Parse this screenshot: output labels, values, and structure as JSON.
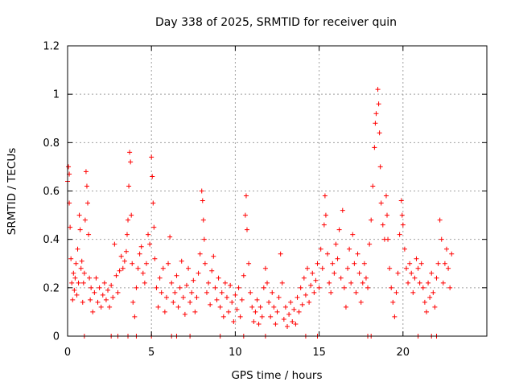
{
  "chart_data": {
    "type": "scatter",
    "title": "Day 338 of 2025, SRMTID for receiver quin",
    "xlabel": "GPS time / hours",
    "ylabel": "SRMTID / TECUs",
    "xlim": [
      0,
      25
    ],
    "ylim": [
      0,
      1.2
    ],
    "x_ticks": [
      0,
      5,
      10,
      15,
      20
    ],
    "x_tick_labels": [
      "0",
      "5",
      "10",
      "15",
      "20"
    ],
    "y_ticks": [
      0,
      0.2,
      0.4,
      0.6,
      0.8,
      1.0,
      1.2
    ],
    "y_tick_labels": [
      "0",
      "0.2",
      "0.4",
      "0.6",
      "0.8",
      "1",
      "1.2"
    ],
    "grid": true,
    "marker": "+",
    "color": "#ff0000",
    "series": [
      {
        "name": "SRMTID",
        "points": [
          [
            0.0,
            0.64
          ],
          [
            0.05,
            0.7
          ],
          [
            0.1,
            0.67
          ],
          [
            0.1,
            0.55
          ],
          [
            0.15,
            0.45
          ],
          [
            0.2,
            0.32
          ],
          [
            0.25,
            0.22
          ],
          [
            0.3,
            0.15
          ],
          [
            0.35,
            0.26
          ],
          [
            0.4,
            0.19
          ],
          [
            0.45,
            0.24
          ],
          [
            0.5,
            0.3
          ],
          [
            0.55,
            0.17
          ],
          [
            0.6,
            0.36
          ],
          [
            0.65,
            0.22
          ],
          [
            0.7,
            0.5
          ],
          [
            0.75,
            0.44
          ],
          [
            0.8,
            0.28
          ],
          [
            0.85,
            0.31
          ],
          [
            0.9,
            0.14
          ],
          [
            0.95,
            0.22
          ],
          [
            1.0,
            0.26
          ],
          [
            1.05,
            0.48
          ],
          [
            1.1,
            0.68
          ],
          [
            1.15,
            0.62
          ],
          [
            1.2,
            0.55
          ],
          [
            1.25,
            0.42
          ],
          [
            1.3,
            0.24
          ],
          [
            1.35,
            0.15
          ],
          [
            1.4,
            0.2
          ],
          [
            1.5,
            0.1
          ],
          [
            1.6,
            0.18
          ],
          [
            1.7,
            0.24
          ],
          [
            1.8,
            0.14
          ],
          [
            1.9,
            0.2
          ],
          [
            2.0,
            0.12
          ],
          [
            2.1,
            0.17
          ],
          [
            2.2,
            0.22
          ],
          [
            2.3,
            0.15
          ],
          [
            2.4,
            0.19
          ],
          [
            2.5,
            0.12
          ],
          [
            2.6,
            0.21
          ],
          [
            2.7,
            0.16
          ],
          [
            2.8,
            0.38
          ],
          [
            2.9,
            0.25
          ],
          [
            3.0,
            0.18
          ],
          [
            3.1,
            0.27
          ],
          [
            3.2,
            0.33
          ],
          [
            3.3,
            0.28
          ],
          [
            3.4,
            0.31
          ],
          [
            3.5,
            0.35
          ],
          [
            3.55,
            0.42
          ],
          [
            3.6,
            0.48
          ],
          [
            3.65,
            0.62
          ],
          [
            3.7,
            0.76
          ],
          [
            3.75,
            0.72
          ],
          [
            3.8,
            0.5
          ],
          [
            3.85,
            0.3
          ],
          [
            3.9,
            0.14
          ],
          [
            4.0,
            0.08
          ],
          [
            4.1,
            0.2
          ],
          [
            4.2,
            0.28
          ],
          [
            4.3,
            0.34
          ],
          [
            4.4,
            0.37
          ],
          [
            4.5,
            0.26
          ],
          [
            4.6,
            0.22
          ],
          [
            4.7,
            0.3
          ],
          [
            4.8,
            0.42
          ],
          [
            4.9,
            0.38
          ],
          [
            5.0,
            0.74
          ],
          [
            5.05,
            0.66
          ],
          [
            5.1,
            0.55
          ],
          [
            5.15,
            0.45
          ],
          [
            5.2,
            0.32
          ],
          [
            5.3,
            0.2
          ],
          [
            5.4,
            0.12
          ],
          [
            5.5,
            0.24
          ],
          [
            5.6,
            0.18
          ],
          [
            5.7,
            0.28
          ],
          [
            5.8,
            0.1
          ],
          [
            5.9,
            0.16
          ],
          [
            6.0,
            0.3
          ],
          [
            6.1,
            0.41
          ],
          [
            6.2,
            0.22
          ],
          [
            6.3,
            0.14
          ],
          [
            6.4,
            0.18
          ],
          [
            6.5,
            0.25
          ],
          [
            6.6,
            0.12
          ],
          [
            6.7,
            0.2
          ],
          [
            6.8,
            0.31
          ],
          [
            6.9,
            0.16
          ],
          [
            7.0,
            0.09
          ],
          [
            7.1,
            0.21
          ],
          [
            7.2,
            0.28
          ],
          [
            7.3,
            0.14
          ],
          [
            7.4,
            0.18
          ],
          [
            7.5,
            0.23
          ],
          [
            7.6,
            0.1
          ],
          [
            7.7,
            0.16
          ],
          [
            7.8,
            0.26
          ],
          [
            7.9,
            0.34
          ],
          [
            8.0,
            0.6
          ],
          [
            8.05,
            0.56
          ],
          [
            8.1,
            0.48
          ],
          [
            8.15,
            0.4
          ],
          [
            8.2,
            0.3
          ],
          [
            8.3,
            0.18
          ],
          [
            8.4,
            0.22
          ],
          [
            8.5,
            0.13
          ],
          [
            8.6,
            0.27
          ],
          [
            8.7,
            0.33
          ],
          [
            8.8,
            0.2
          ],
          [
            8.9,
            0.15
          ],
          [
            9.0,
            0.24
          ],
          [
            9.1,
            0.12
          ],
          [
            9.2,
            0.18
          ],
          [
            9.3,
            0.08
          ],
          [
            9.4,
            0.22
          ],
          [
            9.5,
            0.16
          ],
          [
            9.6,
            0.1
          ],
          [
            9.7,
            0.21
          ],
          [
            9.8,
            0.14
          ],
          [
            9.9,
            0.06
          ],
          [
            10.0,
            0.17
          ],
          [
            10.1,
            0.11
          ],
          [
            10.2,
            0.2
          ],
          [
            10.3,
            0.08
          ],
          [
            10.4,
            0.15
          ],
          [
            10.5,
            0.25
          ],
          [
            10.6,
            0.5
          ],
          [
            10.65,
            0.58
          ],
          [
            10.7,
            0.44
          ],
          [
            10.8,
            0.3
          ],
          [
            10.9,
            0.18
          ],
          [
            11.0,
            0.12
          ],
          [
            11.1,
            0.06
          ],
          [
            11.2,
            0.1
          ],
          [
            11.3,
            0.15
          ],
          [
            11.4,
            0.05
          ],
          [
            11.5,
            0.12
          ],
          [
            11.6,
            0.08
          ],
          [
            11.7,
            0.2
          ],
          [
            11.8,
            0.28
          ],
          [
            11.9,
            0.22
          ],
          [
            12.0,
            0.14
          ],
          [
            12.1,
            0.08
          ],
          [
            12.2,
            0.18
          ],
          [
            12.3,
            0.12
          ],
          [
            12.4,
            0.05
          ],
          [
            12.5,
            0.1
          ],
          [
            12.6,
            0.16
          ],
          [
            12.7,
            0.34
          ],
          [
            12.8,
            0.22
          ],
          [
            12.9,
            0.07
          ],
          [
            13.0,
            0.12
          ],
          [
            13.1,
            0.04
          ],
          [
            13.2,
            0.09
          ],
          [
            13.3,
            0.14
          ],
          [
            13.4,
            0.06
          ],
          [
            13.5,
            0.11
          ],
          [
            13.6,
            0.05
          ],
          [
            13.7,
            0.16
          ],
          [
            13.8,
            0.1
          ],
          [
            13.9,
            0.2
          ],
          [
            14.0,
            0.13
          ],
          [
            14.1,
            0.24
          ],
          [
            14.2,
            0.17
          ],
          [
            14.3,
            0.28
          ],
          [
            14.4,
            0.14
          ],
          [
            14.5,
            0.21
          ],
          [
            14.6,
            0.26
          ],
          [
            14.7,
            0.18
          ],
          [
            14.8,
            0.23
          ],
          [
            14.9,
            0.3
          ],
          [
            15.0,
            0.2
          ],
          [
            15.1,
            0.36
          ],
          [
            15.2,
            0.28
          ],
          [
            15.3,
            0.46
          ],
          [
            15.35,
            0.58
          ],
          [
            15.4,
            0.5
          ],
          [
            15.5,
            0.34
          ],
          [
            15.6,
            0.22
          ],
          [
            15.7,
            0.18
          ],
          [
            15.8,
            0.3
          ],
          [
            15.9,
            0.26
          ],
          [
            16.0,
            0.38
          ],
          [
            16.1,
            0.32
          ],
          [
            16.2,
            0.44
          ],
          [
            16.3,
            0.24
          ],
          [
            16.4,
            0.52
          ],
          [
            16.5,
            0.2
          ],
          [
            16.6,
            0.12
          ],
          [
            16.7,
            0.28
          ],
          [
            16.8,
            0.36
          ],
          [
            16.9,
            0.22
          ],
          [
            17.0,
            0.42
          ],
          [
            17.1,
            0.3
          ],
          [
            17.2,
            0.18
          ],
          [
            17.3,
            0.34
          ],
          [
            17.4,
            0.26
          ],
          [
            17.5,
            0.14
          ],
          [
            17.6,
            0.22
          ],
          [
            17.7,
            0.3
          ],
          [
            17.8,
            0.24
          ],
          [
            17.9,
            0.2
          ],
          [
            18.0,
            0.38
          ],
          [
            18.1,
            0.48
          ],
          [
            18.2,
            0.62
          ],
          [
            18.3,
            0.78
          ],
          [
            18.35,
            0.88
          ],
          [
            18.4,
            0.92
          ],
          [
            18.5,
            1.02
          ],
          [
            18.55,
            0.96
          ],
          [
            18.6,
            0.84
          ],
          [
            18.65,
            0.7
          ],
          [
            18.7,
            0.55
          ],
          [
            18.8,
            0.46
          ],
          [
            18.9,
            0.4
          ],
          [
            19.0,
            0.58
          ],
          [
            19.05,
            0.5
          ],
          [
            19.1,
            0.4
          ],
          [
            19.2,
            0.28
          ],
          [
            19.3,
            0.2
          ],
          [
            19.4,
            0.14
          ],
          [
            19.5,
            0.08
          ],
          [
            19.6,
            0.18
          ],
          [
            19.7,
            0.26
          ],
          [
            19.8,
            0.42
          ],
          [
            19.9,
            0.56
          ],
          [
            19.95,
            0.5
          ],
          [
            20.0,
            0.46
          ],
          [
            20.1,
            0.36
          ],
          [
            20.2,
            0.28
          ],
          [
            20.3,
            0.22
          ],
          [
            20.4,
            0.3
          ],
          [
            20.5,
            0.26
          ],
          [
            20.6,
            0.18
          ],
          [
            20.7,
            0.24
          ],
          [
            20.8,
            0.32
          ],
          [
            20.9,
            0.28
          ],
          [
            21.0,
            0.22
          ],
          [
            21.1,
            0.3
          ],
          [
            21.2,
            0.2
          ],
          [
            21.3,
            0.14
          ],
          [
            21.4,
            0.1
          ],
          [
            21.5,
            0.22
          ],
          [
            21.6,
            0.16
          ],
          [
            21.7,
            0.26
          ],
          [
            21.8,
            0.18
          ],
          [
            21.9,
            0.12
          ],
          [
            22.0,
            0.24
          ],
          [
            22.1,
            0.3
          ],
          [
            22.2,
            0.48
          ],
          [
            22.3,
            0.4
          ],
          [
            22.4,
            0.22
          ],
          [
            22.5,
            0.3
          ],
          [
            22.6,
            0.36
          ],
          [
            22.7,
            0.28
          ],
          [
            22.8,
            0.2
          ],
          [
            22.9,
            0.34
          ]
        ]
      }
    ],
    "zero_points_x": [
      1.0,
      2.6,
      3.0,
      3.6,
      4.1,
      5.0,
      6.2,
      6.5,
      7.3,
      9.1,
      10.5,
      11.8,
      14.2,
      14.9,
      17.9,
      18.1,
      20.9,
      21.7,
      22.0
    ]
  }
}
